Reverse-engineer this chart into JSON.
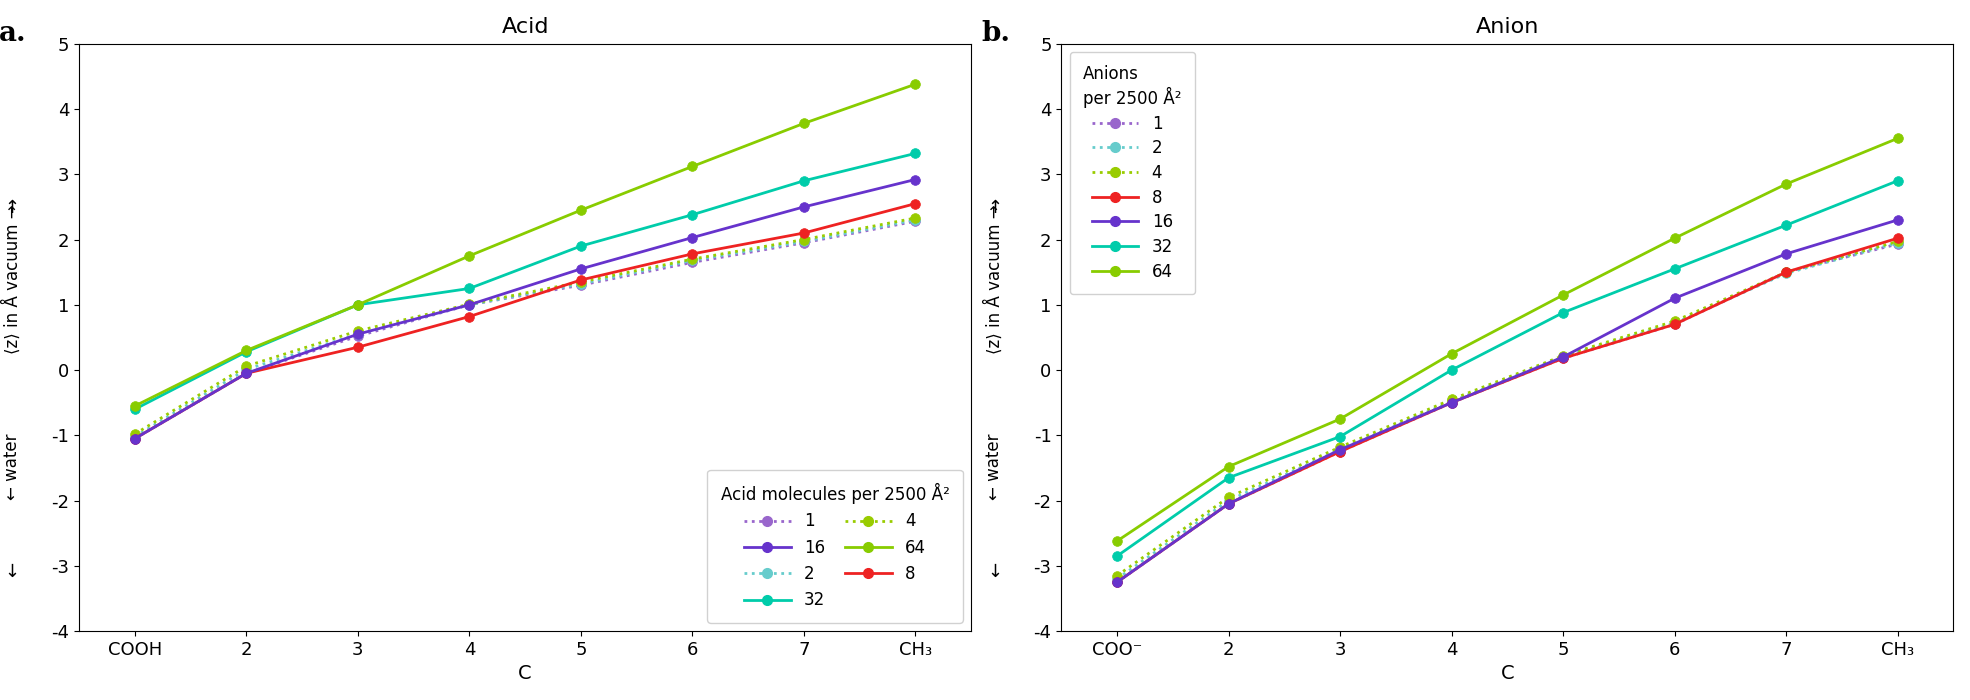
{
  "acid": {
    "title": "Acid",
    "xlabel": "C",
    "xlabels": [
      "COOH",
      "2",
      "3",
      "4",
      "5",
      "6",
      "7",
      "CH₃"
    ],
    "ylim": [
      -4,
      5
    ],
    "yticks": [
      -4,
      -3,
      -2,
      -1,
      0,
      1,
      2,
      3,
      4,
      5
    ],
    "legend_title": "Acid molecules per 2500 Å²",
    "series": [
      {
        "label": "1",
        "color": "#9966CC",
        "linestyle": "dotted",
        "y": [
          -1.05,
          -0.05,
          0.52,
          1.0,
          1.3,
          1.65,
          1.95,
          2.28
        ]
      },
      {
        "label": "2",
        "color": "#66CCCC",
        "linestyle": "dotted",
        "y": [
          -1.02,
          0.01,
          0.55,
          1.0,
          1.32,
          1.68,
          1.97,
          2.3
        ]
      },
      {
        "label": "4",
        "color": "#99CC00",
        "linestyle": "dotted",
        "y": [
          -0.98,
          0.06,
          0.6,
          1.01,
          1.35,
          1.7,
          2.0,
          2.33
        ]
      },
      {
        "label": "8",
        "color": "#EE2222",
        "linestyle": "solid",
        "y": [
          -1.05,
          -0.05,
          0.35,
          0.82,
          1.38,
          1.78,
          2.1,
          2.55
        ]
      },
      {
        "label": "16",
        "color": "#6633CC",
        "linestyle": "solid",
        "y": [
          -1.05,
          -0.05,
          0.55,
          1.0,
          1.55,
          2.03,
          2.5,
          2.92
        ]
      },
      {
        "label": "32",
        "color": "#00CCAA",
        "linestyle": "solid",
        "y": [
          -0.6,
          0.28,
          1.0,
          1.25,
          1.9,
          2.38,
          2.9,
          3.32
        ]
      },
      {
        "label": "64",
        "color": "#88CC00",
        "linestyle": "solid",
        "y": [
          -0.55,
          0.3,
          1.0,
          1.75,
          2.45,
          3.12,
          3.78,
          4.38
        ]
      }
    ]
  },
  "anion": {
    "title": "Anion",
    "xlabel": "C",
    "xlabels": [
      "COO⁻",
      "2",
      "3",
      "4",
      "5",
      "6",
      "7",
      "CH₃"
    ],
    "ylim": [
      -4,
      5
    ],
    "yticks": [
      -4,
      -3,
      -2,
      -1,
      0,
      1,
      2,
      3,
      4,
      5
    ],
    "legend_title": "Anions\nper 2500 Å²",
    "series": [
      {
        "label": "1",
        "color": "#9966CC",
        "linestyle": "dotted",
        "y": [
          -3.25,
          -2.05,
          -1.25,
          -0.5,
          0.18,
          0.7,
          1.5,
          1.93
        ]
      },
      {
        "label": "2",
        "color": "#66CCCC",
        "linestyle": "dotted",
        "y": [
          -3.2,
          -2.0,
          -1.22,
          -0.48,
          0.2,
          0.72,
          1.48,
          1.95
        ]
      },
      {
        "label": "4",
        "color": "#99CC00",
        "linestyle": "dotted",
        "y": [
          -3.15,
          -1.95,
          -1.18,
          -0.45,
          0.22,
          0.75,
          1.5,
          1.97
        ]
      },
      {
        "label": "8",
        "color": "#EE2222",
        "linestyle": "solid",
        "y": [
          -3.25,
          -2.05,
          -1.25,
          -0.5,
          0.18,
          0.7,
          1.5,
          2.02
        ]
      },
      {
        "label": "16",
        "color": "#6633CC",
        "linestyle": "solid",
        "y": [
          -3.25,
          -2.05,
          -1.22,
          -0.5,
          0.2,
          1.1,
          1.78,
          2.3
        ]
      },
      {
        "label": "32",
        "color": "#00CCAA",
        "linestyle": "solid",
        "y": [
          -2.85,
          -1.65,
          -1.02,
          0.0,
          0.88,
          1.55,
          2.22,
          2.9
        ]
      },
      {
        "label": "64",
        "color": "#88CC00",
        "linestyle": "solid",
        "y": [
          -2.62,
          -1.48,
          -0.75,
          0.25,
          1.15,
          2.02,
          2.85,
          3.55
        ]
      }
    ]
  }
}
